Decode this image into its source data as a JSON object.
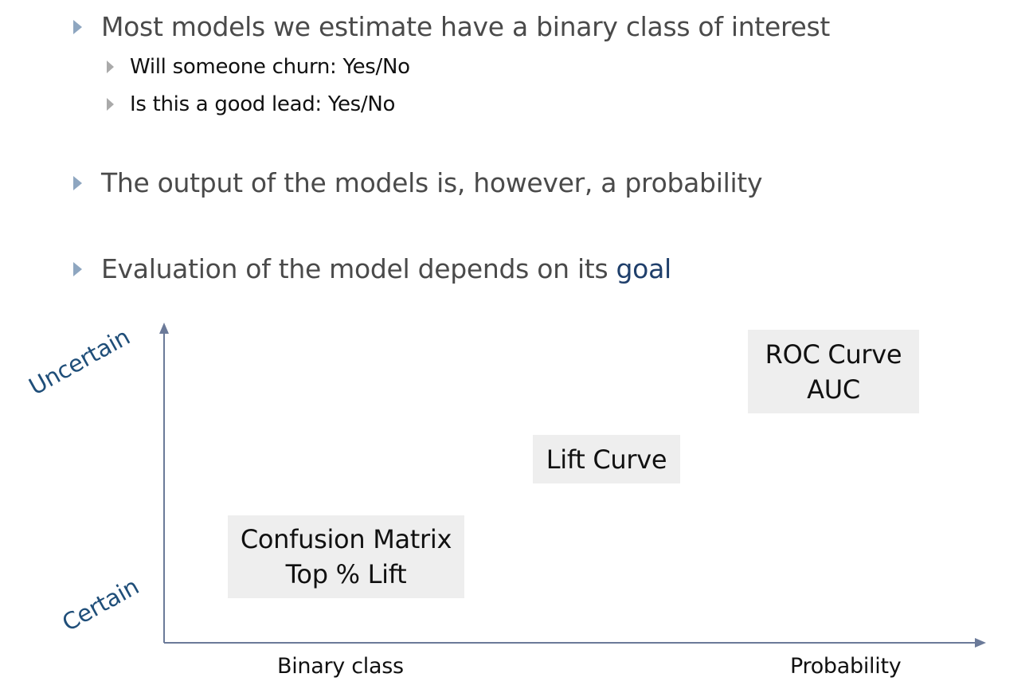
{
  "bullets": {
    "b1": "Most models we estimate have a binary class of interest",
    "b1_sub1": "Will someone churn: Yes/No",
    "b1_sub2": "Is this a good lead: Yes/No",
    "b2": "The output of the models is, however, a probability",
    "b3_prefix": "Evaluation of the model depends on its ",
    "b3_highlight": "goal"
  },
  "diagram": {
    "y_top_label": "Uncertain",
    "y_bottom_label": "Certain",
    "x_left_label": "Binary class",
    "x_right_label": "Probability",
    "box_confusion": {
      "line1": "Confusion Matrix",
      "line2": "Top % Lift"
    },
    "box_lift": {
      "line1": "Lift Curve"
    },
    "box_roc": {
      "line1": "ROC Curve",
      "line2": "AUC"
    }
  },
  "colors": {
    "axis": "#6b7a99",
    "bullet_l1": "#8ea6c0",
    "bullet_l2": "#aaaaaa",
    "highlight": "#1f3f6b",
    "box_fill": "#eeeeee"
  }
}
